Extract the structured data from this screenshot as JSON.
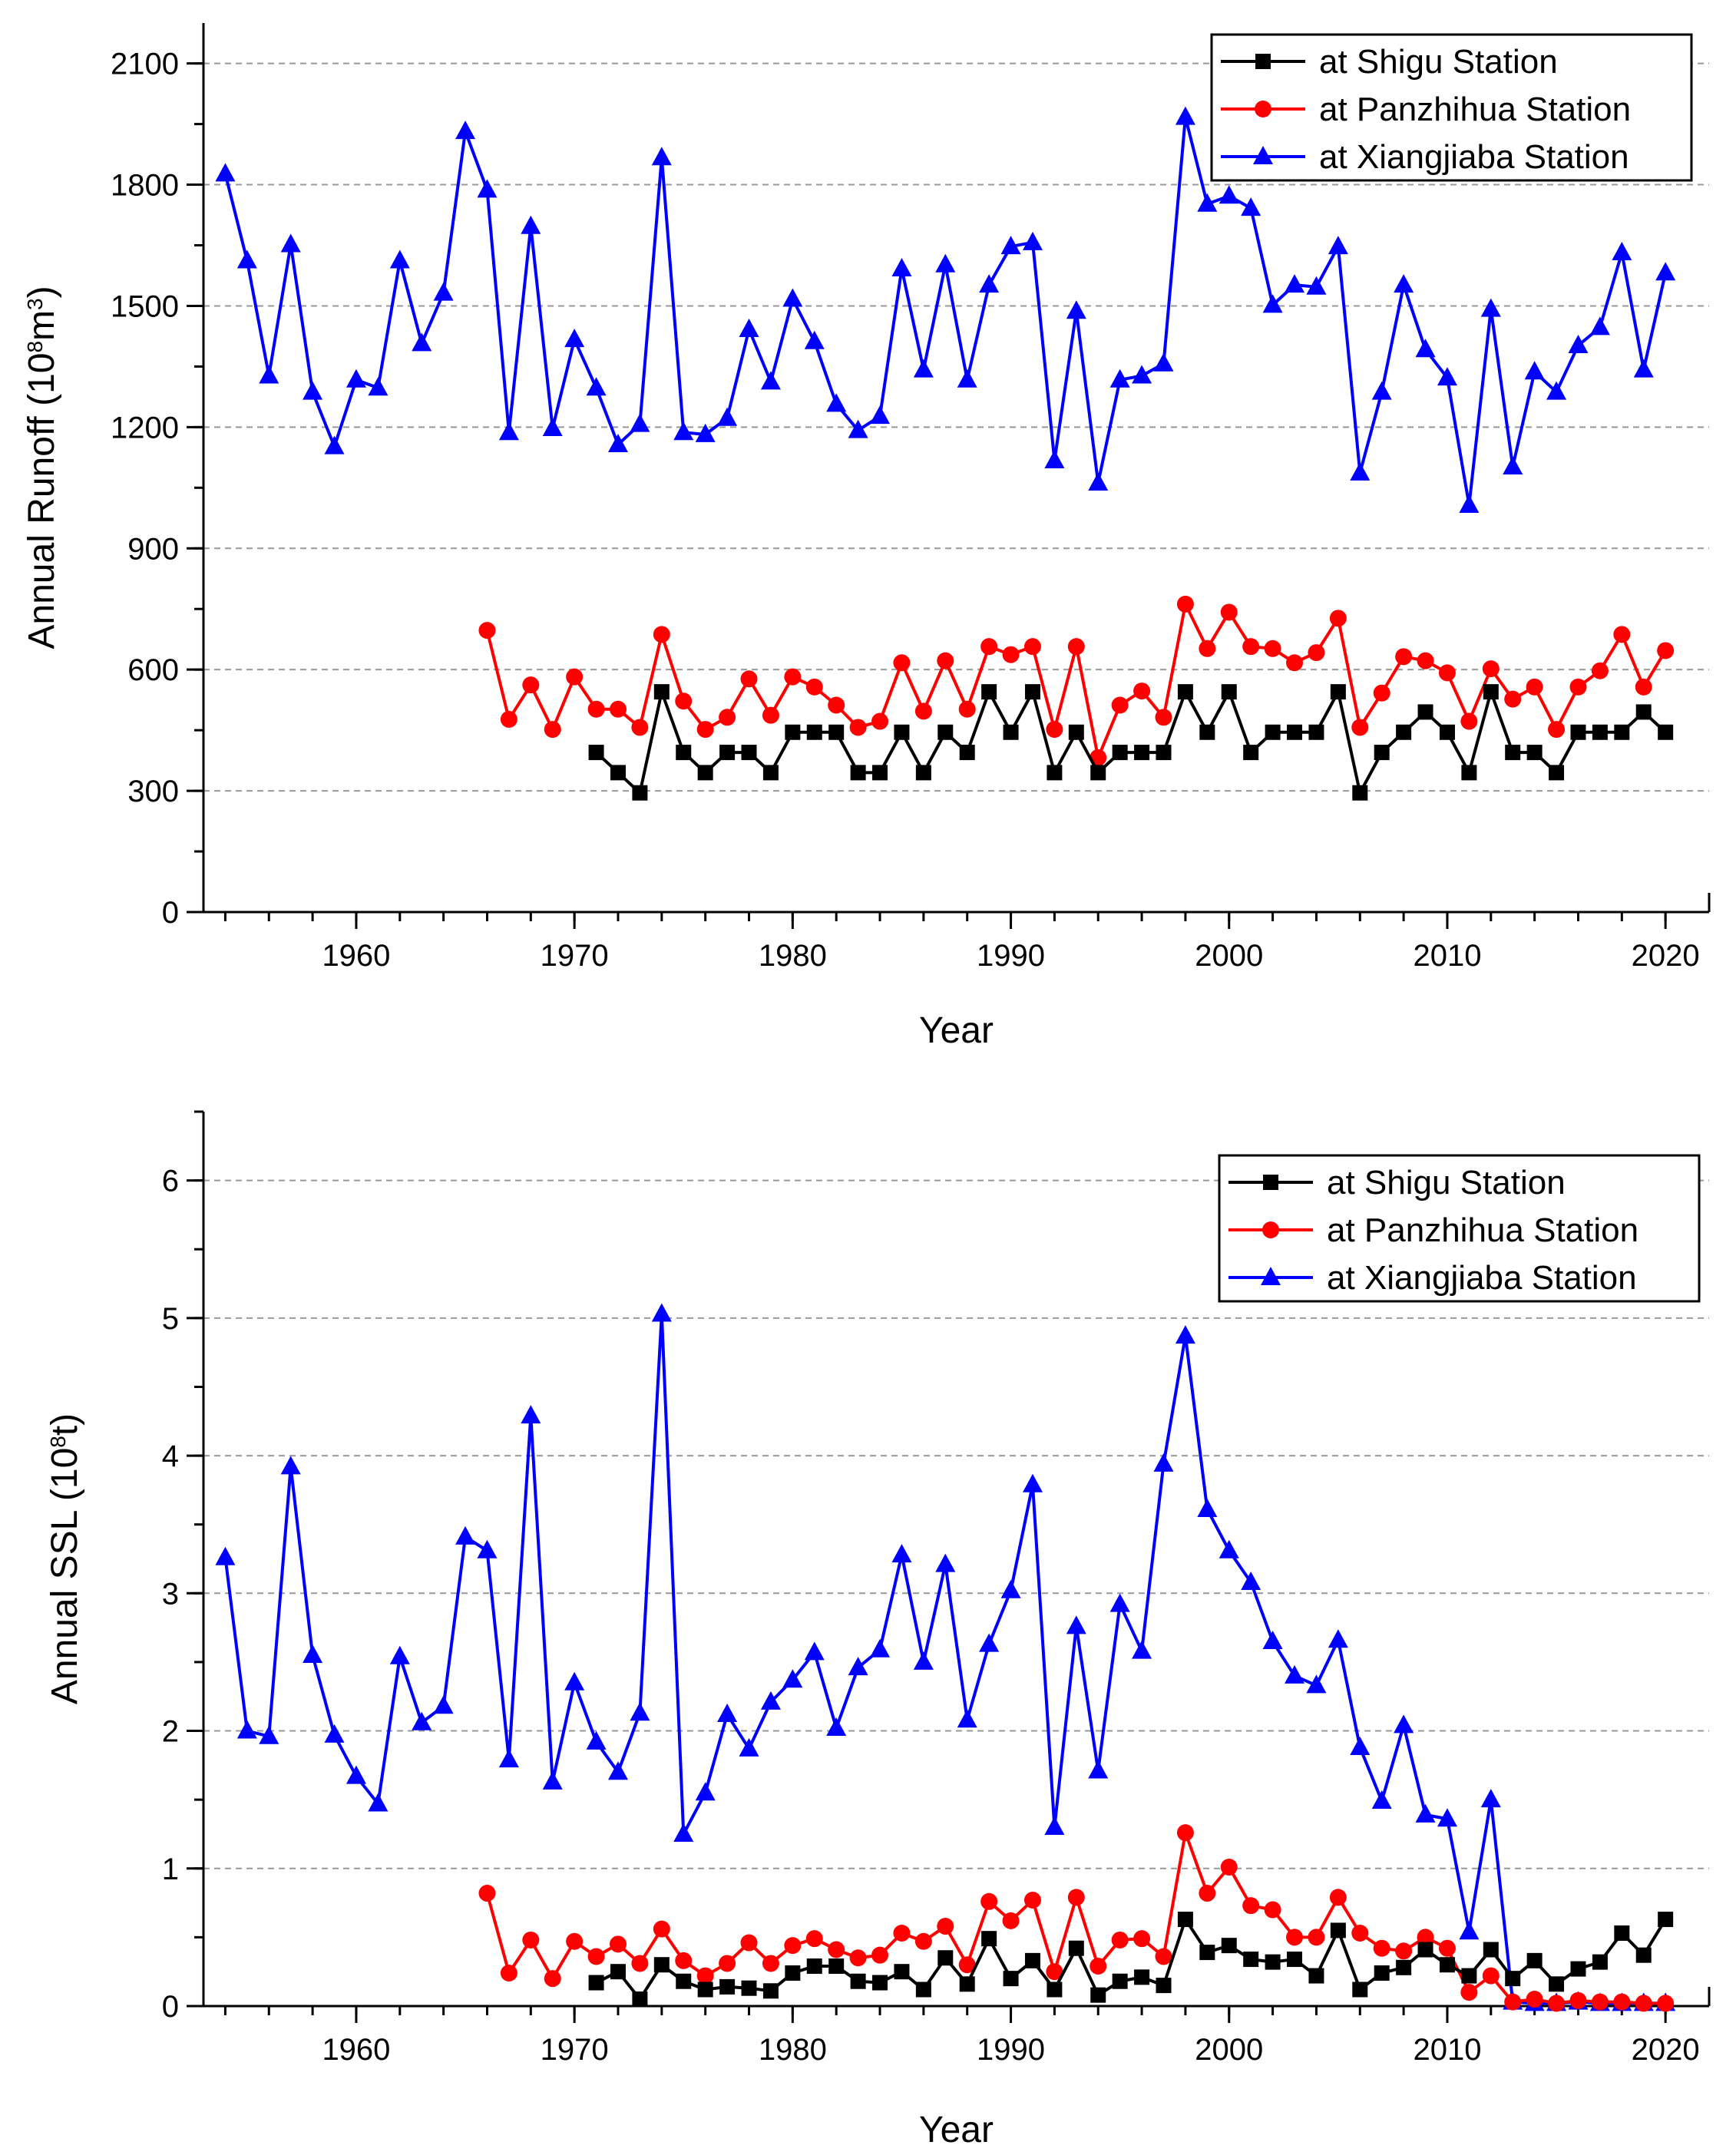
{
  "charts": [
    {
      "key": "runoff",
      "ylabel": {
        "text": "Annual Runoff (10",
        "sup": "8",
        "text2": "m",
        "sup2": "3",
        "text3": ")"
      },
      "xlabel": "Year",
      "yticks": [
        "0",
        "300",
        "600",
        "900",
        "1200",
        "1500",
        "1800",
        "2100"
      ],
      "xticks": [
        "1960",
        "1970",
        "1980",
        "1990",
        "2000",
        "2010",
        "2020"
      ],
      "legend": [
        "at Shigu Station",
        "at Panzhihua Station",
        "at Xiangjiaba Station"
      ]
    },
    {
      "key": "ssl",
      "ylabel": {
        "text": "Annual SSL (10",
        "sup": "8",
        "text2": "t)",
        "sup2": "",
        "text3": ""
      },
      "xlabel": "Year",
      "yticks": [
        "0",
        "1",
        "2",
        "3",
        "4",
        "5",
        "6"
      ],
      "xticks": [
        "1960",
        "1970",
        "1980",
        "1990",
        "2000",
        "2010",
        "2020"
      ],
      "legend": [
        "at Shigu Station",
        "at Panzhihua Station",
        "at Xiangjiaba Station"
      ]
    }
  ],
  "chart_data": [
    {
      "type": "line",
      "title": "",
      "xlabel": "Year",
      "ylabel": "Annual Runoff (10^8 m^3)",
      "xlim": [
        1953,
        2022
      ],
      "ylim": [
        0,
        2100
      ],
      "grid": "horizontal dashed",
      "legend_position": "top-right",
      "series": [
        {
          "name": "at Shigu Station",
          "color": "#000000",
          "marker": "square",
          "x": [
            1971,
            1972,
            1973,
            1974,
            1975,
            1976,
            1977,
            1978,
            1979,
            1980,
            1981,
            1982,
            1983,
            1984,
            1985,
            1986,
            1987,
            1988,
            1989,
            1990,
            1991,
            1992,
            1993,
            1994,
            1995,
            1996,
            1997,
            1998,
            1999,
            2000,
            2001,
            2002,
            2003,
            2004,
            2005,
            2006,
            2007,
            2008,
            2009,
            2010,
            2011,
            2012,
            2013,
            2014,
            2015,
            2016,
            2017,
            2018,
            2019,
            2020
          ],
          "y": [
            395,
            345,
            295,
            545,
            395,
            345,
            395,
            395,
            345,
            445,
            445,
            445,
            345,
            345,
            445,
            345,
            445,
            395,
            545,
            445,
            545,
            345,
            445,
            345,
            395,
            395,
            395,
            545,
            445,
            545,
            395,
            445,
            445,
            445,
            545,
            295,
            395,
            445,
            495,
            445,
            345,
            545,
            395,
            395,
            345,
            445,
            445,
            445,
            495,
            445
          ]
        },
        {
          "name": "at Panzhihua Station",
          "color": "#ff0000",
          "marker": "circle",
          "x": [
            1966,
            1967,
            1968,
            1969,
            1970,
            1971,
            1972,
            1973,
            1974,
            1975,
            1976,
            1977,
            1978,
            1979,
            1980,
            1981,
            1982,
            1983,
            1984,
            1985,
            1986,
            1987,
            1988,
            1989,
            1990,
            1991,
            1992,
            1993,
            1994,
            1995,
            1996,
            1997,
            1998,
            1999,
            2000,
            2001,
            2002,
            2003,
            2004,
            2005,
            2006,
            2007,
            2008,
            2009,
            2010,
            2011,
            2012,
            2013,
            2014,
            2015,
            2016,
            2017,
            2018,
            2019,
            2020
          ],
          "y": [
            697,
            477,
            562,
            452,
            582,
            502,
            502,
            457,
            687,
            522,
            452,
            482,
            577,
            487,
            582,
            557,
            512,
            457,
            472,
            617,
            497,
            622,
            502,
            657,
            637,
            657,
            452,
            657,
            382,
            512,
            547,
            482,
            762,
            652,
            742,
            657,
            652,
            617,
            642,
            727,
            457,
            542,
            632,
            622,
            592,
            472,
            602,
            527,
            557,
            452,
            557,
            597,
            687,
            557,
            647
          ]
        },
        {
          "name": "at Xiangjiaba Station",
          "color": "#0000ff",
          "marker": "triangle",
          "x": [
            1954,
            1955,
            1956,
            1957,
            1958,
            1959,
            1960,
            1961,
            1962,
            1963,
            1964,
            1965,
            1966,
            1967,
            1968,
            1969,
            1970,
            1971,
            1972,
            1973,
            1974,
            1975,
            1976,
            1977,
            1978,
            1979,
            1980,
            1981,
            1982,
            1983,
            1984,
            1985,
            1986,
            1987,
            1988,
            1989,
            1990,
            1991,
            1992,
            1993,
            1994,
            1995,
            1996,
            1997,
            1998,
            1999,
            2000,
            2001,
            2002,
            2003,
            2004,
            2005,
            2006,
            2007,
            2008,
            2009,
            2010,
            2011,
            2012,
            2013,
            2014,
            2015,
            2016,
            2017,
            2018,
            2019,
            2020
          ],
          "y": [
            1827,
            1612,
            1327,
            1652,
            1287,
            1152,
            1317,
            1297,
            1612,
            1407,
            1532,
            1932,
            1787,
            1187,
            1697,
            1197,
            1417,
            1297,
            1157,
            1207,
            1867,
            1187,
            1182,
            1222,
            1442,
            1312,
            1517,
            1412,
            1257,
            1192,
            1227,
            1592,
            1342,
            1602,
            1317,
            1552,
            1647,
            1657,
            1117,
            1487,
            1062,
            1317,
            1327,
            1357,
            1967,
            1752,
            1772,
            1742,
            1502,
            1552,
            1547,
            1647,
            1087,
            1287,
            1552,
            1392,
            1322,
            1007,
            1492,
            1102,
            1337,
            1287,
            1402,
            1447,
            1632,
            1342,
            1582
          ]
        }
      ]
    },
    {
      "type": "line",
      "title": "",
      "xlabel": "Year",
      "ylabel": "Annual SSL (10^8 t)",
      "xlim": [
        1953,
        2022
      ],
      "ylim": [
        0,
        6.5
      ],
      "grid": "horizontal dashed",
      "legend_position": "top-right",
      "series": [
        {
          "name": "at Shigu Station",
          "color": "#000000",
          "marker": "square",
          "x": [
            1971,
            1972,
            1973,
            1974,
            1975,
            1976,
            1977,
            1978,
            1979,
            1980,
            1981,
            1982,
            1983,
            1984,
            1985,
            1986,
            1987,
            1988,
            1989,
            1990,
            1991,
            1992,
            1993,
            1994,
            1995,
            1996,
            1997,
            1998,
            1999,
            2000,
            2001,
            2002,
            2003,
            2004,
            2005,
            2006,
            2007,
            2008,
            2009,
            2010,
            2011,
            2012,
            2013,
            2014,
            2015,
            2016,
            2017,
            2018,
            2019,
            2020
          ],
          "y": [
            0.17,
            0.25,
            0.05,
            0.3,
            0.18,
            0.12,
            0.14,
            0.13,
            0.11,
            0.24,
            0.29,
            0.29,
            0.18,
            0.17,
            0.25,
            0.12,
            0.35,
            0.16,
            0.49,
            0.2,
            0.33,
            0.12,
            0.42,
            0.08,
            0.18,
            0.21,
            0.15,
            0.63,
            0.39,
            0.44,
            0.34,
            0.32,
            0.34,
            0.22,
            0.55,
            0.12,
            0.24,
            0.28,
            0.41,
            0.3,
            0.22,
            0.41,
            0.2,
            0.33,
            0.16,
            0.27,
            0.32,
            0.53,
            0.37,
            0.63
          ]
        },
        {
          "name": "at Panzhihua Station",
          "color": "#ff0000",
          "marker": "circle",
          "x": [
            1966,
            1967,
            1968,
            1969,
            1970,
            1971,
            1972,
            1973,
            1974,
            1975,
            1976,
            1977,
            1978,
            1979,
            1980,
            1981,
            1982,
            1983,
            1984,
            1985,
            1986,
            1987,
            1988,
            1989,
            1990,
            1991,
            1992,
            1993,
            1994,
            1995,
            1996,
            1997,
            1998,
            1999,
            2000,
            2001,
            2002,
            2003,
            2004,
            2005,
            2006,
            2007,
            2008,
            2009,
            2010,
            2011,
            2012,
            2013,
            2014,
            2015,
            2016,
            2017,
            2018,
            2019,
            2020
          ],
          "y": [
            0.82,
            0.24,
            0.48,
            0.2,
            0.47,
            0.36,
            0.45,
            0.31,
            0.56,
            0.33,
            0.22,
            0.31,
            0.46,
            0.31,
            0.44,
            0.49,
            0.41,
            0.35,
            0.37,
            0.53,
            0.47,
            0.58,
            0.3,
            0.76,
            0.62,
            0.77,
            0.25,
            0.79,
            0.29,
            0.48,
            0.49,
            0.36,
            1.26,
            0.82,
            1.01,
            0.73,
            0.7,
            0.5,
            0.5,
            0.79,
            0.53,
            0.42,
            0.4,
            0.5,
            0.42,
            0.1,
            0.22,
            0.03,
            0.05,
            0.02,
            0.04,
            0.03,
            0.03,
            0.02,
            0.02
          ]
        },
        {
          "name": "at Xiangjiaba Station",
          "color": "#0000ff",
          "marker": "triangle",
          "x": [
            1954,
            1955,
            1956,
            1957,
            1958,
            1959,
            1960,
            1961,
            1962,
            1963,
            1964,
            1965,
            1966,
            1967,
            1968,
            1969,
            1970,
            1971,
            1972,
            1973,
            1974,
            1975,
            1976,
            1977,
            1978,
            1979,
            1980,
            1981,
            1982,
            1983,
            1984,
            1985,
            1986,
            1987,
            1988,
            1989,
            1990,
            1991,
            1992,
            1993,
            1994,
            1995,
            1996,
            1997,
            1998,
            1999,
            2000,
            2001,
            2002,
            2003,
            2004,
            2005,
            2006,
            2007,
            2008,
            2009,
            2010,
            2011,
            2012,
            2013,
            2014,
            2015,
            2016,
            2017,
            2018,
            2019,
            2020
          ],
          "y": [
            3.26,
            2.0,
            1.96,
            3.92,
            2.55,
            1.97,
            1.67,
            1.47,
            2.54,
            2.06,
            2.18,
            3.41,
            3.31,
            1.79,
            4.29,
            1.63,
            2.35,
            1.92,
            1.7,
            2.13,
            5.03,
            1.25,
            1.55,
            2.12,
            1.87,
            2.21,
            2.37,
            2.57,
            2.02,
            2.46,
            2.59,
            3.28,
            2.5,
            3.21,
            2.08,
            2.63,
            3.02,
            3.79,
            1.3,
            2.76,
            1.71,
            2.92,
            2.58,
            3.94,
            4.87,
            3.61,
            3.31,
            3.08,
            2.65,
            2.4,
            2.33,
            2.66,
            1.88,
            1.49,
            2.04,
            1.39,
            1.36,
            0.54,
            1.5,
            0.03,
            0.02,
            0.02,
            0.03,
            0.02,
            0.02,
            0.02,
            0.02
          ]
        }
      ]
    }
  ]
}
